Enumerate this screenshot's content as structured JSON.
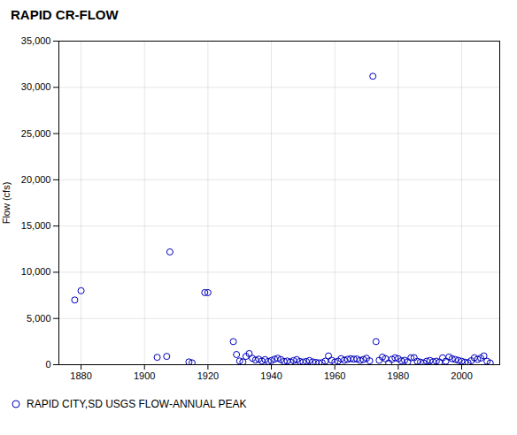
{
  "chart_data": {
    "type": "scatter",
    "title": "RAPID CR-FLOW",
    "ylabel": "Flow (cfs)",
    "x": [
      1878,
      1880,
      1904,
      1907,
      1908,
      1914,
      1915,
      1919,
      1920,
      1928,
      1929,
      1930,
      1931,
      1932,
      1933,
      1934,
      1935,
      1936,
      1937,
      1938,
      1939,
      1940,
      1941,
      1942,
      1943,
      1944,
      1945,
      1946,
      1947,
      1948,
      1949,
      1950,
      1951,
      1952,
      1953,
      1954,
      1955,
      1956,
      1957,
      1958,
      1959,
      1960,
      1961,
      1962,
      1963,
      1964,
      1965,
      1966,
      1967,
      1968,
      1969,
      1970,
      1971,
      1972,
      1973,
      1974,
      1975,
      1976,
      1977,
      1978,
      1979,
      1980,
      1981,
      1982,
      1983,
      1984,
      1985,
      1986,
      1987,
      1988,
      1989,
      1990,
      1991,
      1992,
      1993,
      1994,
      1995,
      1996,
      1997,
      1998,
      1999,
      2000,
      2001,
      2002,
      2003,
      2004,
      2005,
      2006,
      2007,
      2008,
      2009
    ],
    "series": [
      {
        "name": "RAPID CITY,SD USGS FLOW-ANNUAL PEAK",
        "color": "#0000bb",
        "values": [
          7000,
          8000,
          800,
          900,
          12200,
          300,
          200,
          7800,
          7800,
          2500,
          1100,
          400,
          300,
          900,
          1200,
          700,
          500,
          600,
          400,
          550,
          350,
          450,
          600,
          700,
          550,
          350,
          400,
          300,
          450,
          550,
          350,
          280,
          350,
          450,
          300,
          250,
          200,
          220,
          380,
          950,
          480,
          280,
          380,
          650,
          480,
          580,
          650,
          600,
          620,
          470,
          560,
          700,
          420,
          31200,
          2500,
          480,
          820,
          650,
          180,
          580,
          750,
          650,
          420,
          480,
          320,
          750,
          770,
          370,
          280,
          190,
          380,
          460,
          320,
          380,
          280,
          750,
          380,
          830,
          650,
          560,
          470,
          370,
          270,
          220,
          430,
          750,
          580,
          720,
          950,
          370,
          180
        ]
      }
    ],
    "xlim": [
      1873,
      2012
    ],
    "ylim": [
      0,
      35000
    ],
    "xticks": [
      1880,
      1900,
      1920,
      1940,
      1960,
      1980,
      2000
    ],
    "yticks": [
      0,
      {
        "value": 5000,
        "label": "5,000"
      },
      {
        "value": 10000,
        "label": "10,000"
      },
      {
        "value": 15000,
        "label": "15,000"
      },
      {
        "value": 20000,
        "label": "20,000"
      },
      {
        "value": 25000,
        "label": "25,000"
      },
      {
        "value": 30000,
        "label": "30,000"
      },
      {
        "value": 35000,
        "label": "35,000"
      }
    ],
    "grid": true,
    "legend": "bottom",
    "marker": "circle"
  }
}
